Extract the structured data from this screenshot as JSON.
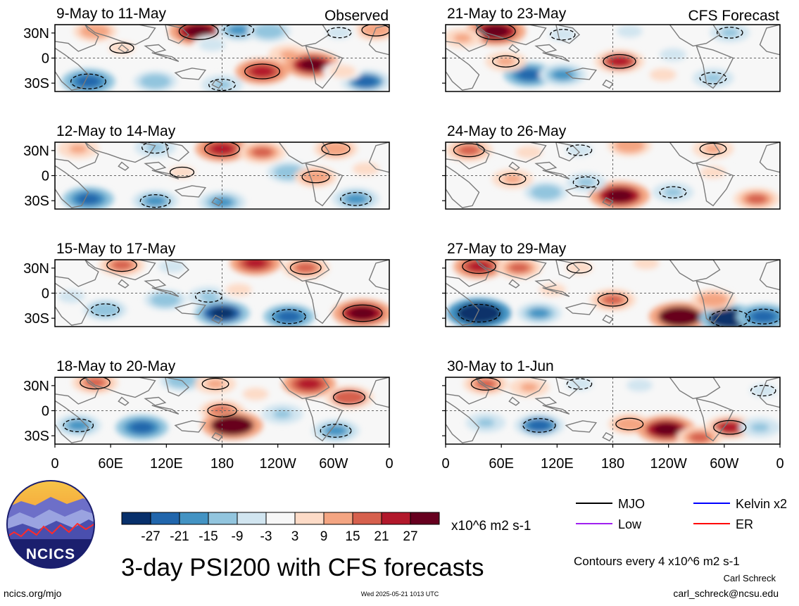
{
  "panels_left": [
    {
      "title": "9-May to 11-May",
      "tag": "Observed"
    },
    {
      "title": "12-May to 14-May",
      "tag": ""
    },
    {
      "title": "15-May to 17-May",
      "tag": ""
    },
    {
      "title": "18-May to 20-May",
      "tag": ""
    }
  ],
  "panels_right": [
    {
      "title": "21-May to 23-May",
      "tag": "CFS Forecast"
    },
    {
      "title": "24-May to 26-May",
      "tag": ""
    },
    {
      "title": "27-May to 29-May",
      "tag": ""
    },
    {
      "title": "30-May to 1-Jun",
      "tag": ""
    }
  ],
  "lat_labels": [
    "30N",
    "0",
    "30S"
  ],
  "lon_labels": [
    "0",
    "60E",
    "120E",
    "180",
    "120W",
    "60W",
    "0"
  ],
  "colorbar": {
    "ticks": [
      "-27",
      "-21",
      "-15",
      "-9",
      "-3",
      "3",
      "9",
      "15",
      "21",
      "27"
    ],
    "colors": [
      "#08306b",
      "#2166ac",
      "#4393c3",
      "#92c5de",
      "#d1e5f0",
      "#f7f7f7",
      "#fddbc7",
      "#f4a582",
      "#d6604d",
      "#b2182b",
      "#67001f"
    ],
    "units": "x10^6 m2 s-1"
  },
  "legend": [
    {
      "label": "MJO",
      "color": "#000000"
    },
    {
      "label": "Kelvin x2",
      "color": "#0000ff"
    },
    {
      "label": "Low",
      "color": "#a020f0"
    },
    {
      "label": "ER",
      "color": "#ff0000"
    }
  ],
  "logo_text": "NCICS",
  "main_title": "3-day PSI200 with CFS forecasts",
  "contour_note": "Contours every 4 x10^6 m2 s-1",
  "author": "Carl Schreck",
  "email": "carl_schreck@ncsu.edu",
  "website": "ncics.org/mjo",
  "timestamp": "Wed 2025-05-21 1013 UTC"
}
